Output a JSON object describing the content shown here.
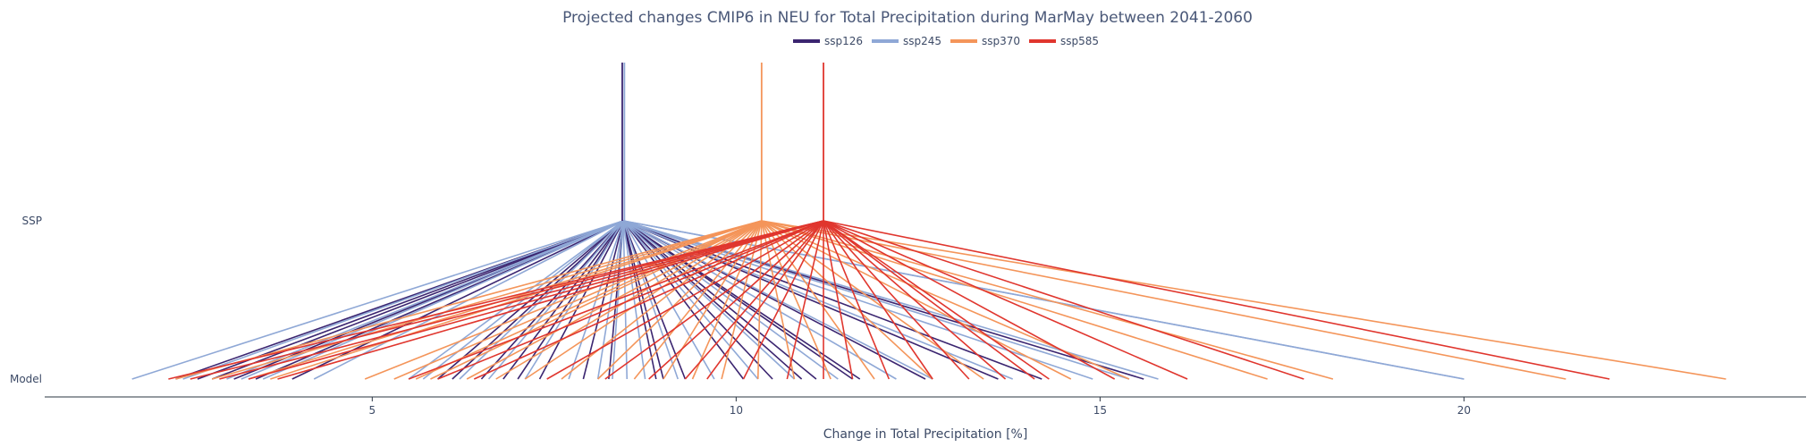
{
  "chart_data": {
    "type": "line",
    "title": "Projected changes CMIP6 in NEU for Total Precipitation during MarMay between 2041-2060",
    "xlabel": "Change in Total Precipitation [%]",
    "ylabel": "",
    "xlim": [
      0.5,
      24.7
    ],
    "xticks": [
      5,
      10,
      15,
      20
    ],
    "y_categories": [
      "Model",
      "SSP"
    ],
    "legend": {
      "placement": "top-center",
      "orientation": "horizontal"
    },
    "grid": false,
    "series": [
      {
        "name": "ssp126",
        "color": "#3b2570",
        "ssp_value": 8.45,
        "model_values": [
          2.3,
          2.6,
          2.8,
          3.1,
          3.4,
          3.9,
          5.9,
          6.1,
          6.5,
          6.8,
          7.0,
          7.3,
          7.9,
          8.25,
          8.9,
          9.0,
          9.3,
          10.1,
          10.5,
          10.9,
          11.1,
          11.6,
          11.7,
          12.6,
          13.6,
          14.2,
          15.6
        ]
      },
      {
        "name": "ssp245",
        "color": "#8fa8d6",
        "ssp_value": 8.45,
        "model_values": [
          1.7,
          2.4,
          3.0,
          3.2,
          3.5,
          4.2,
          5.5,
          5.7,
          6.2,
          6.6,
          7.1,
          7.7,
          8.1,
          8.3,
          8.5,
          8.75,
          9.2,
          9.7,
          10.3,
          10.8,
          11.4,
          12.2,
          12.7,
          13.8,
          14.9,
          15.4,
          15.8,
          20.0,
          20.0
        ]
      },
      {
        "name": "ssp370",
        "color": "#f4955a",
        "ssp_value": 10.35,
        "model_values": [
          2.3,
          2.8,
          3.3,
          3.6,
          4.9,
          5.3,
          5.6,
          5.8,
          6.3,
          6.7,
          7.1,
          7.6,
          8.1,
          8.6,
          9.0,
          9.4,
          9.8,
          10.3,
          10.8,
          11.3,
          11.9,
          12.7,
          13.4,
          14.6,
          15.4,
          17.3,
          18.2,
          21.4,
          23.6
        ]
      },
      {
        "name": "ssp585",
        "color": "#e0362e",
        "ssp_value": 11.2,
        "model_values": [
          2.2,
          2.5,
          2.9,
          3.3,
          3.7,
          5.5,
          5.9,
          6.4,
          7.4,
          8.2,
          8.8,
          9.3,
          9.6,
          10.1,
          10.7,
          11.2,
          11.6,
          12.1,
          12.7,
          13.2,
          13.7,
          14.1,
          14.3,
          15.2,
          16.2,
          17.8,
          22.0
        ]
      }
    ]
  }
}
